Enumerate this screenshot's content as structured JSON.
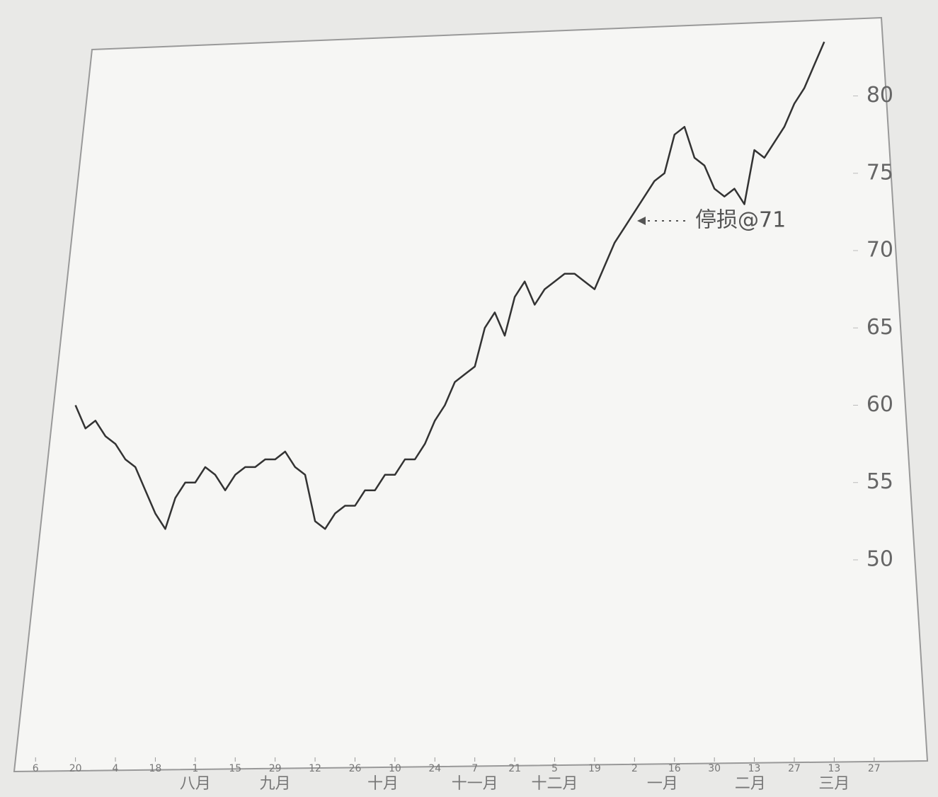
{
  "chart_data": {
    "type": "line",
    "annotation": "停损@71",
    "x": [
      2,
      2.5,
      3,
      3.5,
      4,
      4.5,
      5,
      5.5,
      6,
      6.5,
      7,
      7.5,
      8,
      8.5,
      9,
      9.5,
      10,
      10.5,
      11,
      11.5,
      12,
      12.5,
      13,
      13.5,
      14,
      14.5,
      15,
      15.5,
      16,
      16.5,
      17,
      17.5,
      18,
      18.5,
      19,
      19.5,
      20,
      20.5,
      21,
      21.5,
      22,
      22.5,
      23,
      23.5,
      24,
      24.5,
      25,
      25.5,
      26,
      26.5,
      27,
      27.5,
      28,
      28.5,
      29,
      29.5,
      30,
      30.5,
      31,
      31.5,
      32,
      32.5,
      33,
      33.5,
      34,
      34.5,
      35,
      35.5,
      36,
      36.5,
      37,
      37.5,
      38,
      38.5,
      39,
      39.5
    ],
    "series": [
      {
        "color": "#333333",
        "values": [
          60,
          58.5,
          59,
          58,
          57.5,
          56.5,
          56,
          54.5,
          53,
          52,
          54,
          55,
          55,
          56,
          55.5,
          54.5,
          55.5,
          56,
          56,
          56.5,
          56.5,
          57,
          56,
          55.5,
          52.5,
          52,
          53,
          53.5,
          53.5,
          54.5,
          54.5,
          55.5,
          55.5,
          56.5,
          56.5,
          57.5,
          59,
          60,
          61.5,
          62,
          62.5,
          65,
          66,
          64.5,
          67,
          68,
          66.5,
          67.5,
          68,
          68.5,
          68.5,
          68,
          67.5,
          69,
          70.5,
          71.5,
          72.5,
          73.5,
          74.5,
          75,
          77.5,
          78,
          76,
          75.5,
          74,
          73.5,
          74,
          73,
          76.5,
          76,
          77,
          78,
          79.5,
          80.5,
          82,
          83.5
        ]
      }
    ],
    "xlim": [
      -1,
      43
    ],
    "ylim": [
      37,
      83
    ],
    "yticks": [
      50,
      55,
      60,
      65,
      70,
      75,
      80
    ],
    "xticks": [
      {
        "value": 0,
        "label": "6"
      },
      {
        "value": 2,
        "label": "20"
      },
      {
        "value": 4,
        "label": "4"
      },
      {
        "value": 6,
        "label": "18"
      },
      {
        "value": 8,
        "label": "1"
      },
      {
        "value": 10,
        "label": "15"
      },
      {
        "value": 12,
        "label": "29"
      },
      {
        "value": 14,
        "label": "12"
      },
      {
        "value": 16,
        "label": "26"
      },
      {
        "value": 18,
        "label": "10"
      },
      {
        "value": 20,
        "label": "24"
      },
      {
        "value": 22,
        "label": "7"
      },
      {
        "value": 24,
        "label": "21"
      },
      {
        "value": 26,
        "label": "5"
      },
      {
        "value": 28,
        "label": "19"
      },
      {
        "value": 30,
        "label": "2"
      },
      {
        "value": 32,
        "label": "16"
      },
      {
        "value": 34,
        "label": "30"
      },
      {
        "value": 36,
        "label": "13"
      },
      {
        "value": 38,
        "label": "27"
      },
      {
        "value": 40,
        "label": "13"
      },
      {
        "value": 42,
        "label": "27"
      }
    ],
    "month_labels": [
      {
        "value": 8,
        "label": "八月"
      },
      {
        "value": 12,
        "label": "九月"
      },
      {
        "value": 17.4,
        "label": "十月"
      },
      {
        "value": 22,
        "label": "十一月"
      },
      {
        "value": 26,
        "label": "十二月"
      },
      {
        "value": 31.4,
        "label": "一月"
      },
      {
        "value": 35.8,
        "label": "二月"
      },
      {
        "value": 40,
        "label": "三月"
      }
    ]
  }
}
